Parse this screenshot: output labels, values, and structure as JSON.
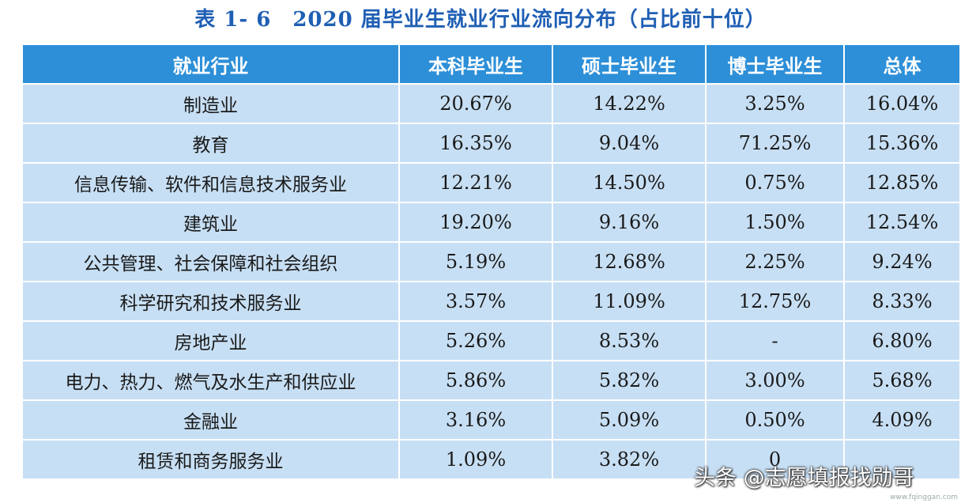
{
  "title": "表 1- 6　2020 届毕业生就业行业流向分布（占比前十位）",
  "table": {
    "headers": [
      "就业行业",
      "本科毕业生",
      "硕士毕业生",
      "博士毕业生",
      "总体"
    ],
    "rows": [
      {
        "industry": "制造业",
        "bachelor": "20.67%",
        "master": "14.22%",
        "doctor": "3.25%",
        "overall": "16.04%"
      },
      {
        "industry": "教育",
        "bachelor": "16.35%",
        "master": "9.04%",
        "doctor": "71.25%",
        "overall": "15.36%"
      },
      {
        "industry": "信息传输、软件和信息技术服务业",
        "bachelor": "12.21%",
        "master": "14.50%",
        "doctor": "0.75%",
        "overall": "12.85%"
      },
      {
        "industry": "建筑业",
        "bachelor": "19.20%",
        "master": "9.16%",
        "doctor": "1.50%",
        "overall": "12.54%"
      },
      {
        "industry": "公共管理、社会保障和社会组织",
        "bachelor": "5.19%",
        "master": "12.68%",
        "doctor": "2.25%",
        "overall": "9.24%"
      },
      {
        "industry": "科学研究和技术服务业",
        "bachelor": "3.57%",
        "master": "11.09%",
        "doctor": "12.75%",
        "overall": "8.33%"
      },
      {
        "industry": "房地产业",
        "bachelor": "5.26%",
        "master": "8.53%",
        "doctor": "-",
        "overall": "6.80%"
      },
      {
        "industry": "电力、热力、燃气及水生产和供应业",
        "bachelor": "5.86%",
        "master": "5.82%",
        "doctor": "3.00%",
        "overall": "5.68%"
      },
      {
        "industry": "金融业",
        "bachelor": "3.16%",
        "master": "5.09%",
        "doctor": "0.50%",
        "overall": "4.09%"
      },
      {
        "industry": "租赁和商务服务业",
        "bachelor": "1.09%",
        "master": "3.82%",
        "doctor": "0",
        "overall": ""
      }
    ]
  },
  "watermark": "头条 @志愿填报找勋哥",
  "site_mark": "www.fqinggan.com",
  "colors": {
    "title": "#1f5fb4",
    "header_bg": "#2d8fd8",
    "cell_bg": "#c7dff4"
  }
}
